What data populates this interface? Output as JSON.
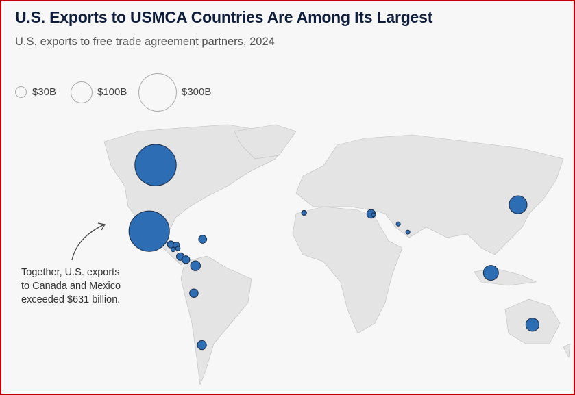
{
  "chart_data": {
    "type": "bubble-map",
    "title": "U.S. Exports to USMCA Countries Are Among Its Largest",
    "subtitle": "U.S. exports to free trade agreement partners, 2024",
    "units": "billion USD",
    "legend": [
      {
        "value": 30,
        "label": "$30B"
      },
      {
        "value": 100,
        "label": "$100B"
      },
      {
        "value": 300,
        "label": "$300B"
      }
    ],
    "annotation": "Together, U.S. exports to Canada and Mexico exceeded $631 billion.",
    "points": [
      {
        "country": "Canada",
        "lon": -100,
        "lat": 55.5,
        "value": 349
      },
      {
        "country": "Mexico",
        "lon": -104,
        "lat": 23,
        "value": 334
      },
      {
        "country": "Dominican Republic",
        "lon": -70.5,
        "lat": 19,
        "value": 13
      },
      {
        "country": "Guatemala",
        "lon": -90.5,
        "lat": 16.5,
        "value": 10
      },
      {
        "country": "Honduras",
        "lon": -87,
        "lat": 16,
        "value": 9
      },
      {
        "country": "El Salvador",
        "lon": -89,
        "lat": 14,
        "value": 4
      },
      {
        "country": "Nicaragua",
        "lon": -86,
        "lat": 14.5,
        "value": 4
      },
      {
        "country": "Costa Rica",
        "lon": -84.5,
        "lat": 10.5,
        "value": 12
      },
      {
        "country": "Panama",
        "lon": -81,
        "lat": 9,
        "value": 12
      },
      {
        "country": "Colombia",
        "lon": -75,
        "lat": 6,
        "value": 20
      },
      {
        "country": "Peru",
        "lon": -76,
        "lat": -7.5,
        "value": 15
      },
      {
        "country": "Chile",
        "lon": -71,
        "lat": -33,
        "value": 17
      },
      {
        "country": "Morocco",
        "lon": -7,
        "lat": 32,
        "value": 5
      },
      {
        "country": "Israel",
        "lon": 35,
        "lat": 31.5,
        "value": 15
      },
      {
        "country": "Jordan",
        "lon": 36.5,
        "lat": 31,
        "value": 3
      },
      {
        "country": "Bahrain",
        "lon": 52,
        "lat": 26.5,
        "value": 3
      },
      {
        "country": "Oman",
        "lon": 58,
        "lat": 22.5,
        "value": 2
      },
      {
        "country": "South Korea",
        "lon": 127,
        "lat": 36,
        "value": 66
      },
      {
        "country": "Singapore",
        "lon": 110,
        "lat": 2.5,
        "value": 46
      },
      {
        "country": "Australia",
        "lon": 136,
        "lat": -23,
        "value": 35
      }
    ],
    "colors": {
      "bubble": "#2c6db3",
      "bubble_stroke": "#1a2a44",
      "land": "#e4e4e4",
      "border": "#9a9a9a"
    }
  }
}
